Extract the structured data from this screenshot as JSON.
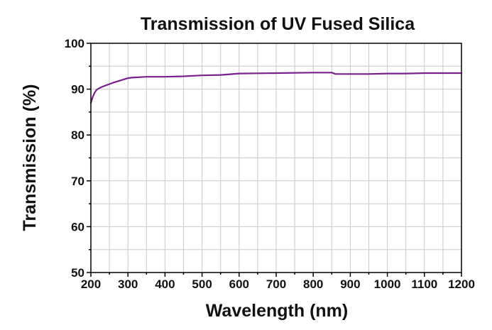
{
  "chart_data": {
    "type": "line",
    "title": "Transmission of UV Fused Silica",
    "xlabel": "Wavelength (nm)",
    "ylabel": "Transmission (%)",
    "xlim": [
      200,
      1200
    ],
    "ylim": [
      50,
      100
    ],
    "xticks": [
      200,
      300,
      400,
      500,
      600,
      700,
      800,
      900,
      1000,
      1100,
      1200
    ],
    "yticks": [
      50,
      60,
      70,
      80,
      90,
      100
    ],
    "grid": true,
    "series": [
      {
        "name": "UV Fused Silica",
        "color": "#7b1f8f",
        "x": [
          200,
          205,
          210,
          215,
          220,
          230,
          240,
          250,
          260,
          280,
          300,
          310,
          350,
          400,
          450,
          500,
          550,
          600,
          700,
          800,
          850,
          860,
          900,
          950,
          1000,
          1050,
          1100,
          1150,
          1200
        ],
        "y": [
          87,
          88.3,
          89.2,
          89.8,
          90.1,
          90.5,
          90.8,
          91.1,
          91.4,
          91.9,
          92.4,
          92.5,
          92.7,
          92.7,
          92.8,
          93.0,
          93.1,
          93.4,
          93.5,
          93.6,
          93.6,
          93.3,
          93.3,
          93.3,
          93.4,
          93.4,
          93.5,
          93.5,
          93.5
        ]
      }
    ]
  }
}
